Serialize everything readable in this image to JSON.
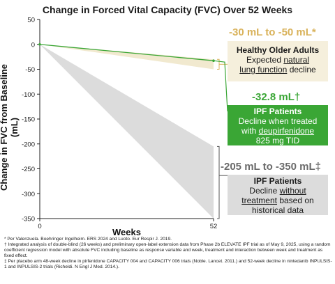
{
  "chart_data": {
    "type": "line",
    "title": "Change in Forced Vital Capacity (FVC) Over 52 Weeks",
    "xlabel": "Weeks",
    "ylabel": "Change in FVC from Baseline (mL)",
    "xlim": [
      0,
      52
    ],
    "ylim": [
      -350,
      50
    ],
    "x_ticks": [
      "0",
      "52"
    ],
    "y_ticks": [
      "50",
      "0",
      "-50",
      "-100",
      "-150",
      "-200",
      "-250",
      "-300",
      "-350"
    ],
    "series": [
      {
        "name": "IPF Patients — deupirfenidone 825 mg TID",
        "x": [
          0,
          52
        ],
        "y": [
          0,
          -32.8
        ],
        "color": "#3aa635"
      }
    ],
    "bands": [
      {
        "name": "Healthy Older Adults",
        "x": [
          0,
          52
        ],
        "y_upper": [
          0,
          -30
        ],
        "y_lower": [
          0,
          -50
        ],
        "color": "#f1e9cf"
      },
      {
        "name": "IPF Patients without treatment",
        "x": [
          0,
          52
        ],
        "y_upper": [
          0,
          -205
        ],
        "y_lower": [
          0,
          -350
        ],
        "color": "#dcdcdc"
      }
    ],
    "grid": false
  },
  "annotations": {
    "healthy_range": "-30 mL to -50 mL*",
    "healthy_title": "Healthy Older Adults",
    "healthy_line1": "Expected",
    "healthy_line1_u": "natural",
    "healthy_line2_u": "lung function",
    "healthy_line2": "decline",
    "treated_value": "-32.8 mL†",
    "treated_title": "IPF Patients",
    "treated_line1": "Decline when treated",
    "treated_line2": "with",
    "treated_line2_u": "deupirfenidone",
    "treated_line3": "825 mg TID",
    "untreated_range": "-205 mL to -350 mL‡",
    "untreated_title": "IPF Patients",
    "untreated_line1": "Decline",
    "untreated_line1_u": "without",
    "untreated_line2_u": "treatment",
    "untreated_line2": "based on",
    "untreated_line3": "historical data"
  },
  "footnotes": [
    "* Per Valenzuela. Boehringer Ingelheim. ERS 2024 and Luoto. Eur Respir J. 2019.",
    "† Integrated analysis of double-blind (26 weeks) and preliminary open-label extension data from Phase 2b ELEVATE IPF trial as of May 9, 2025, using a random coefficient regression model with absolute FVC including baseline as response variable and week, treatment and interaction between week and treatment as fixed effect.",
    "‡ Per placebo arm 48-week decline in pirfenidone CAPACITY 004 and CAPACITY 006 trials (Noble. Lancet. 2011.) and 52-week decline in nintedanib INPULSIS-1 and INPULSIS-2 trials (Richeldi. N Engl J Med. 2014.)."
  ],
  "colors": {
    "healthy_box": "#f5efdc",
    "healthy_text": "#d9b25a",
    "treated_box": "#3aa635",
    "treated_text": "#3aa635",
    "untreated_box": "#dcdcdc",
    "untreated_text": "#6b6b6b"
  }
}
